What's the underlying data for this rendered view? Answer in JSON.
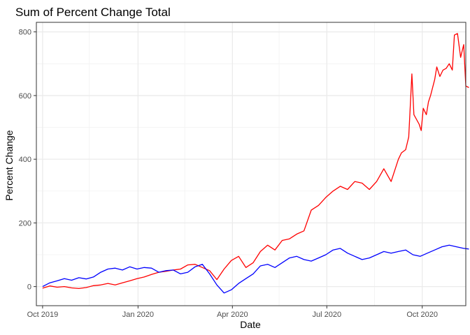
{
  "chart_data": {
    "type": "line",
    "title": "Sum of Percent Change Total",
    "xlabel": "Date",
    "ylabel": "Percent Change",
    "x_ticks": [
      "Oct 2019",
      "Jan 2020",
      "Apr 2020",
      "Jul 2020",
      "Oct 2020"
    ],
    "y_ticks": [
      "0",
      "200",
      "400",
      "600",
      "800"
    ],
    "xlim": [
      "2019-09-25",
      "2020-11-12"
    ],
    "ylim": [
      -60,
      830
    ],
    "grid": true,
    "legend": "none",
    "series": [
      {
        "color": "#ff0000",
        "points": [
          [
            "2019-10-01",
            -5
          ],
          [
            "2019-10-08",
            2
          ],
          [
            "2019-10-15",
            -2
          ],
          [
            "2019-10-22",
            0
          ],
          [
            "2019-10-29",
            -4
          ],
          [
            "2019-11-05",
            -6
          ],
          [
            "2019-11-12",
            -3
          ],
          [
            "2019-11-19",
            3
          ],
          [
            "2019-11-26",
            5
          ],
          [
            "2019-12-03",
            10
          ],
          [
            "2019-12-10",
            5
          ],
          [
            "2019-12-17",
            12
          ],
          [
            "2019-12-24",
            18
          ],
          [
            "2019-12-31",
            25
          ],
          [
            "2020-01-07",
            30
          ],
          [
            "2020-01-14",
            38
          ],
          [
            "2020-01-21",
            45
          ],
          [
            "2020-01-28",
            48
          ],
          [
            "2020-02-04",
            52
          ],
          [
            "2020-02-11",
            55
          ],
          [
            "2020-02-18",
            68
          ],
          [
            "2020-02-25",
            70
          ],
          [
            "2020-03-03",
            60
          ],
          [
            "2020-03-10",
            50
          ],
          [
            "2020-03-17",
            22
          ],
          [
            "2020-03-24",
            55
          ],
          [
            "2020-03-31",
            82
          ],
          [
            "2020-04-07",
            95
          ],
          [
            "2020-04-14",
            60
          ],
          [
            "2020-04-21",
            75
          ],
          [
            "2020-04-28",
            110
          ],
          [
            "2020-05-05",
            130
          ],
          [
            "2020-05-12",
            115
          ],
          [
            "2020-05-19",
            145
          ],
          [
            "2020-05-26",
            150
          ],
          [
            "2020-06-02",
            165
          ],
          [
            "2020-06-09",
            175
          ],
          [
            "2020-06-16",
            240
          ],
          [
            "2020-06-23",
            255
          ],
          [
            "2020-06-30",
            280
          ],
          [
            "2020-07-07",
            300
          ],
          [
            "2020-07-14",
            315
          ],
          [
            "2020-07-21",
            305
          ],
          [
            "2020-07-28",
            330
          ],
          [
            "2020-08-04",
            325
          ],
          [
            "2020-08-11",
            305
          ],
          [
            "2020-08-18",
            330
          ],
          [
            "2020-08-25",
            370
          ],
          [
            "2020-09-01",
            330
          ],
          [
            "2020-09-08",
            400
          ],
          [
            "2020-09-11",
            420
          ],
          [
            "2020-09-15",
            430
          ],
          [
            "2020-09-18",
            470
          ],
          [
            "2020-09-21",
            668
          ],
          [
            "2020-09-23",
            540
          ],
          [
            "2020-09-28",
            510
          ],
          [
            "2020-09-30",
            490
          ],
          [
            "2020-10-02",
            560
          ],
          [
            "2020-10-05",
            540
          ],
          [
            "2020-10-07",
            580
          ],
          [
            "2020-10-09",
            600
          ],
          [
            "2020-10-13",
            650
          ],
          [
            "2020-10-15",
            690
          ],
          [
            "2020-10-18",
            660
          ],
          [
            "2020-10-21",
            680
          ],
          [
            "2020-10-24",
            685
          ],
          [
            "2020-10-27",
            700
          ],
          [
            "2020-10-30",
            680
          ],
          [
            "2020-11-01",
            790
          ],
          [
            "2020-11-04",
            795
          ],
          [
            "2020-11-07",
            720
          ],
          [
            "2020-11-10",
            760
          ],
          [
            "2020-11-12",
            630
          ],
          [
            "2020-11-15",
            625
          ]
        ]
      },
      {
        "color": "#0000ff",
        "points": [
          [
            "2019-10-01",
            0
          ],
          [
            "2019-10-08",
            12
          ],
          [
            "2019-10-15",
            18
          ],
          [
            "2019-10-22",
            25
          ],
          [
            "2019-10-29",
            20
          ],
          [
            "2019-11-05",
            28
          ],
          [
            "2019-11-12",
            24
          ],
          [
            "2019-11-19",
            30
          ],
          [
            "2019-11-26",
            45
          ],
          [
            "2019-12-03",
            55
          ],
          [
            "2019-12-10",
            58
          ],
          [
            "2019-12-17",
            52
          ],
          [
            "2019-12-24",
            62
          ],
          [
            "2019-12-31",
            55
          ],
          [
            "2020-01-07",
            60
          ],
          [
            "2020-01-14",
            58
          ],
          [
            "2020-01-21",
            45
          ],
          [
            "2020-01-28",
            50
          ],
          [
            "2020-02-04",
            52
          ],
          [
            "2020-02-11",
            40
          ],
          [
            "2020-02-18",
            45
          ],
          [
            "2020-02-25",
            62
          ],
          [
            "2020-03-03",
            70
          ],
          [
            "2020-03-10",
            40
          ],
          [
            "2020-03-17",
            5
          ],
          [
            "2020-03-24",
            -20
          ],
          [
            "2020-03-31",
            -10
          ],
          [
            "2020-04-07",
            10
          ],
          [
            "2020-04-14",
            25
          ],
          [
            "2020-04-21",
            40
          ],
          [
            "2020-04-28",
            65
          ],
          [
            "2020-05-05",
            70
          ],
          [
            "2020-05-12",
            60
          ],
          [
            "2020-05-19",
            75
          ],
          [
            "2020-05-26",
            90
          ],
          [
            "2020-06-02",
            95
          ],
          [
            "2020-06-09",
            85
          ],
          [
            "2020-06-16",
            80
          ],
          [
            "2020-06-23",
            90
          ],
          [
            "2020-06-30",
            100
          ],
          [
            "2020-07-07",
            115
          ],
          [
            "2020-07-14",
            120
          ],
          [
            "2020-07-21",
            105
          ],
          [
            "2020-07-28",
            95
          ],
          [
            "2020-08-04",
            85
          ],
          [
            "2020-08-11",
            90
          ],
          [
            "2020-08-18",
            100
          ],
          [
            "2020-08-25",
            110
          ],
          [
            "2020-09-01",
            105
          ],
          [
            "2020-09-08",
            110
          ],
          [
            "2020-09-15",
            115
          ],
          [
            "2020-09-22",
            100
          ],
          [
            "2020-09-29",
            95
          ],
          [
            "2020-10-06",
            105
          ],
          [
            "2020-10-13",
            115
          ],
          [
            "2020-10-20",
            125
          ],
          [
            "2020-10-27",
            130
          ],
          [
            "2020-11-03",
            125
          ],
          [
            "2020-11-10",
            120
          ],
          [
            "2020-11-15",
            118
          ]
        ]
      }
    ]
  }
}
